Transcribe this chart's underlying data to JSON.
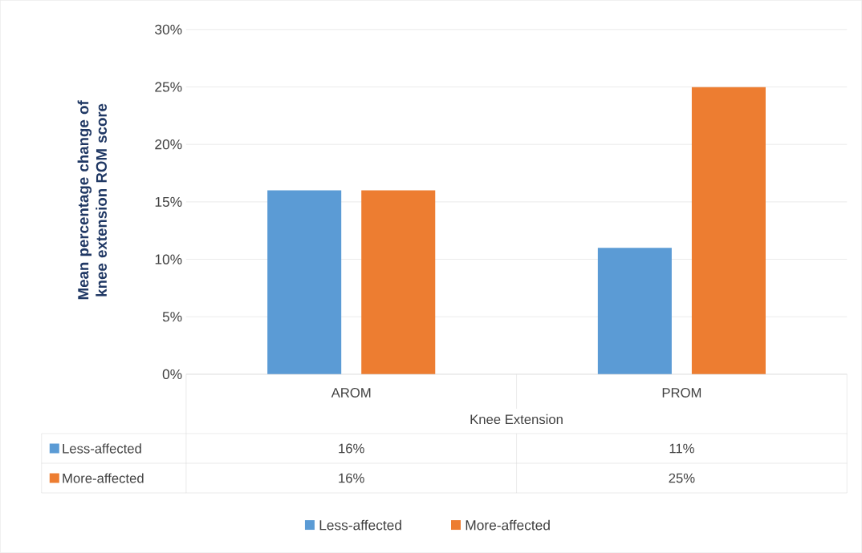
{
  "chart_data": {
    "type": "bar",
    "categories": [
      "AROM",
      "PROM"
    ],
    "xlabel": "Knee Extension",
    "ylabel": "Mean percentage change of knee extension ROM score",
    "series": [
      {
        "name": "Less-affected",
        "color": "#5b9bd5",
        "values": [
          16,
          11
        ],
        "value_labels": [
          "16%",
          "11%"
        ]
      },
      {
        "name": "More-affected",
        "color": "#ed7d31",
        "values": [
          16,
          25
        ],
        "value_labels": [
          "16%",
          "25%"
        ]
      }
    ],
    "ylim": [
      0,
      30
    ],
    "yticks": [
      {
        "value": 0,
        "label": "0%"
      },
      {
        "value": 5,
        "label": "5%"
      },
      {
        "value": 10,
        "label": "10%"
      },
      {
        "value": 15,
        "label": "15%"
      },
      {
        "value": 20,
        "label": "20%"
      },
      {
        "value": 25,
        "label": "25%"
      },
      {
        "value": 30,
        "label": "30%"
      }
    ],
    "grid": "y",
    "legend": "bottom"
  }
}
